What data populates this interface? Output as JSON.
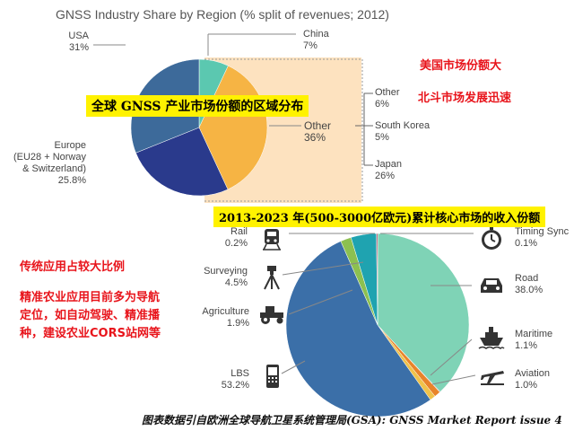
{
  "chart_data": [
    {
      "type": "pie",
      "title": "GNSS Industry Share by Region (% split of revenues; 2012)",
      "slices": [
        {
          "label": "China",
          "value": 7,
          "display": "7%",
          "color": "#5bc8b0"
        },
        {
          "label": "Other",
          "value": 36,
          "display": "36%",
          "color": "#f6b444"
        },
        {
          "label": "Europe (EU28 + Norway & Switzerland)",
          "value": 25.8,
          "display": "25.8%",
          "color": "#2a3a8c"
        },
        {
          "label": "USA",
          "value": 31,
          "display": "31%",
          "color": "#3d6a9a"
        }
      ],
      "other_breakdown": [
        {
          "label": "Other",
          "value": 6,
          "display": "6%"
        },
        {
          "label": "South Korea",
          "value": 5,
          "display": "5%"
        },
        {
          "label": "Japan",
          "value": 26,
          "display": "26%"
        }
      ]
    },
    {
      "type": "pie",
      "title": "2013-2023 年(500-3000亿欧元)累计核心市场的收入份额",
      "slices": [
        {
          "label": "Road",
          "value": 38.0,
          "display": "38.0%",
          "color": "#7fd3b6"
        },
        {
          "label": "Timing Sync",
          "value": 0.1,
          "display": "0.1%",
          "color": "#c8505a"
        },
        {
          "label": "Maritime",
          "value": 1.1,
          "display": "1.1%",
          "color": "#e8842a"
        },
        {
          "label": "Aviation",
          "value": 1.0,
          "display": "1.0%",
          "color": "#f0c24a"
        },
        {
          "label": "LBS",
          "value": 53.2,
          "display": "53.2%",
          "color": "#3b6fa8"
        },
        {
          "label": "Agriculture",
          "value": 1.9,
          "display": "1.9%",
          "color": "#8cc050"
        },
        {
          "label": "Surveying",
          "value": 4.5,
          "display": "4.5%",
          "color": "#1fa3b0"
        },
        {
          "label": "Rail",
          "value": 0.2,
          "display": "0.2%",
          "color": "#b83a5a"
        }
      ]
    }
  ],
  "labels": {
    "usa": "USA",
    "usa_val": "31%",
    "china": "China",
    "china_val": "7%",
    "europe1": "Europe",
    "europe2": "(EU28 + Norway",
    "europe3": "& Switzerland)",
    "europe_val": "25.8%",
    "other": "Other",
    "other_val": "36%",
    "sub_other": "Other",
    "sub_other_val": "6%",
    "korea": "South Korea",
    "korea_val": "5%",
    "japan": "Japan",
    "japan_val": "26%",
    "rail": "Rail",
    "rail_val": "0.2%",
    "surveying": "Surveying",
    "surveying_val": "4.5%",
    "agri": "Agriculture",
    "agri_val": "1.9%",
    "lbs": "LBS",
    "lbs_val": "53.2%",
    "timing": "Timing Sync",
    "timing_val": "0.1%",
    "road": "Road",
    "road_val": "38.0%",
    "maritime": "Maritime",
    "maritime_val": "1.1%",
    "aviation": "Aviation",
    "aviation_val": "1.0%"
  },
  "annotations": {
    "banner1": "全球 GNSS 产业市场份额的区域分布",
    "banner2": "2013-2023 年(500-3000亿欧元)累计核心市场的收入份额",
    "us_big": "美国市场份额大",
    "beidou": "北斗市场发展迅速",
    "traditional": "传统应用占较大比例",
    "precision1": "精准农业应用目前多为导航",
    "precision2": "定位，如自动驾驶、精准播",
    "precision3": "种，建设农业CORS站网等",
    "source": "图表数据引自欧洲全球导航卫星系统管理局(GSA): GNSS Market Report issue 4"
  },
  "icons": [
    "train-icon",
    "surveying-tripod-icon",
    "tractor-icon",
    "mobile-phone-icon",
    "stopwatch-icon",
    "car-icon",
    "ship-icon",
    "airplane-icon"
  ]
}
